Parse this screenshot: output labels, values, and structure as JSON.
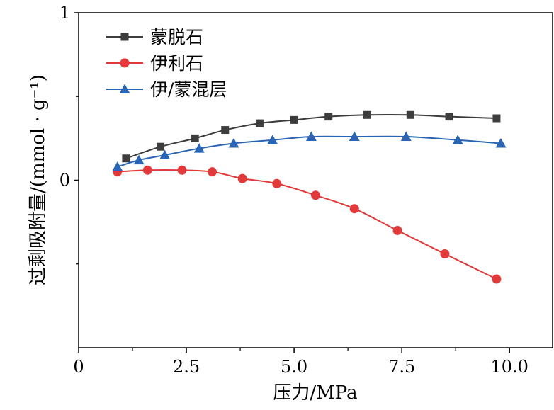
{
  "chart_data": {
    "type": "line",
    "title": "",
    "xlabel": "压力/MPa",
    "ylabel": "过剩吸附量/(mmol · g⁻¹)",
    "xlim": [
      0,
      11
    ],
    "ylim": [
      -1,
      1
    ],
    "x_ticks": [
      0,
      2.5,
      5.0,
      7.5,
      10.0
    ],
    "x_tick_labels": [
      "0",
      "2.5",
      "5.0",
      "7.5",
      "10.0"
    ],
    "y_ticks": [
      0,
      1
    ],
    "y_tick_labels": [
      "0",
      "1"
    ],
    "grid": false,
    "legend_position": "top-left",
    "series": [
      {
        "name": "蒙脱石",
        "color": "#3d3d3d",
        "marker": "square",
        "x": [
          1.1,
          1.9,
          2.7,
          3.4,
          4.2,
          5.0,
          5.8,
          6.7,
          7.7,
          8.6,
          9.7
        ],
        "y": [
          0.13,
          0.2,
          0.25,
          0.3,
          0.34,
          0.36,
          0.38,
          0.39,
          0.39,
          0.38,
          0.37
        ]
      },
      {
        "name": "伊利石",
        "color": "#e23a3a",
        "marker": "circle",
        "x": [
          0.9,
          1.6,
          2.4,
          3.1,
          3.8,
          4.6,
          5.5,
          6.4,
          7.4,
          8.5,
          9.7
        ],
        "y": [
          0.05,
          0.06,
          0.06,
          0.05,
          0.01,
          -0.02,
          -0.09,
          -0.17,
          -0.3,
          -0.44,
          -0.59
        ]
      },
      {
        "name": "伊/蒙混层",
        "color": "#2a64b4",
        "marker": "triangle",
        "x": [
          0.9,
          1.4,
          2.0,
          2.8,
          3.6,
          4.5,
          5.4,
          6.4,
          7.6,
          8.8,
          9.8
        ],
        "y": [
          0.08,
          0.12,
          0.15,
          0.19,
          0.22,
          0.24,
          0.26,
          0.26,
          0.26,
          0.24,
          0.22
        ]
      }
    ]
  }
}
